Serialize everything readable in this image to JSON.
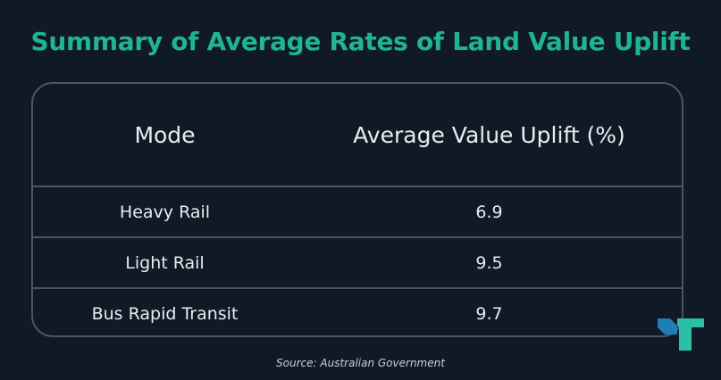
{
  "title": "Summary of Average Rates of Land Value Uplift",
  "columns": [
    "Mode",
    "Average Value Uplift (%)"
  ],
  "rows": [
    [
      "Heavy Rail",
      "6.9"
    ],
    [
      "Light Rail",
      "9.5"
    ],
    [
      "Bus Rapid Transit",
      "9.7"
    ]
  ],
  "source": "Source: Australian Government",
  "colors": {
    "accent": "#1fb58e",
    "background": "#101a26",
    "border": "#4b5561",
    "logo_dark": "#1d7fb4",
    "logo_light": "#2bc0a6"
  },
  "logo_icon": "brand-logo-icon",
  "chart_data": {
    "type": "table",
    "title": "Summary of Average Rates of Land Value Uplift",
    "columns": [
      "Mode",
      "Average Value Uplift (%)"
    ],
    "categories": [
      "Heavy Rail",
      "Light Rail",
      "Bus Rapid Transit"
    ],
    "values": [
      6.9,
      9.5,
      9.7
    ]
  }
}
